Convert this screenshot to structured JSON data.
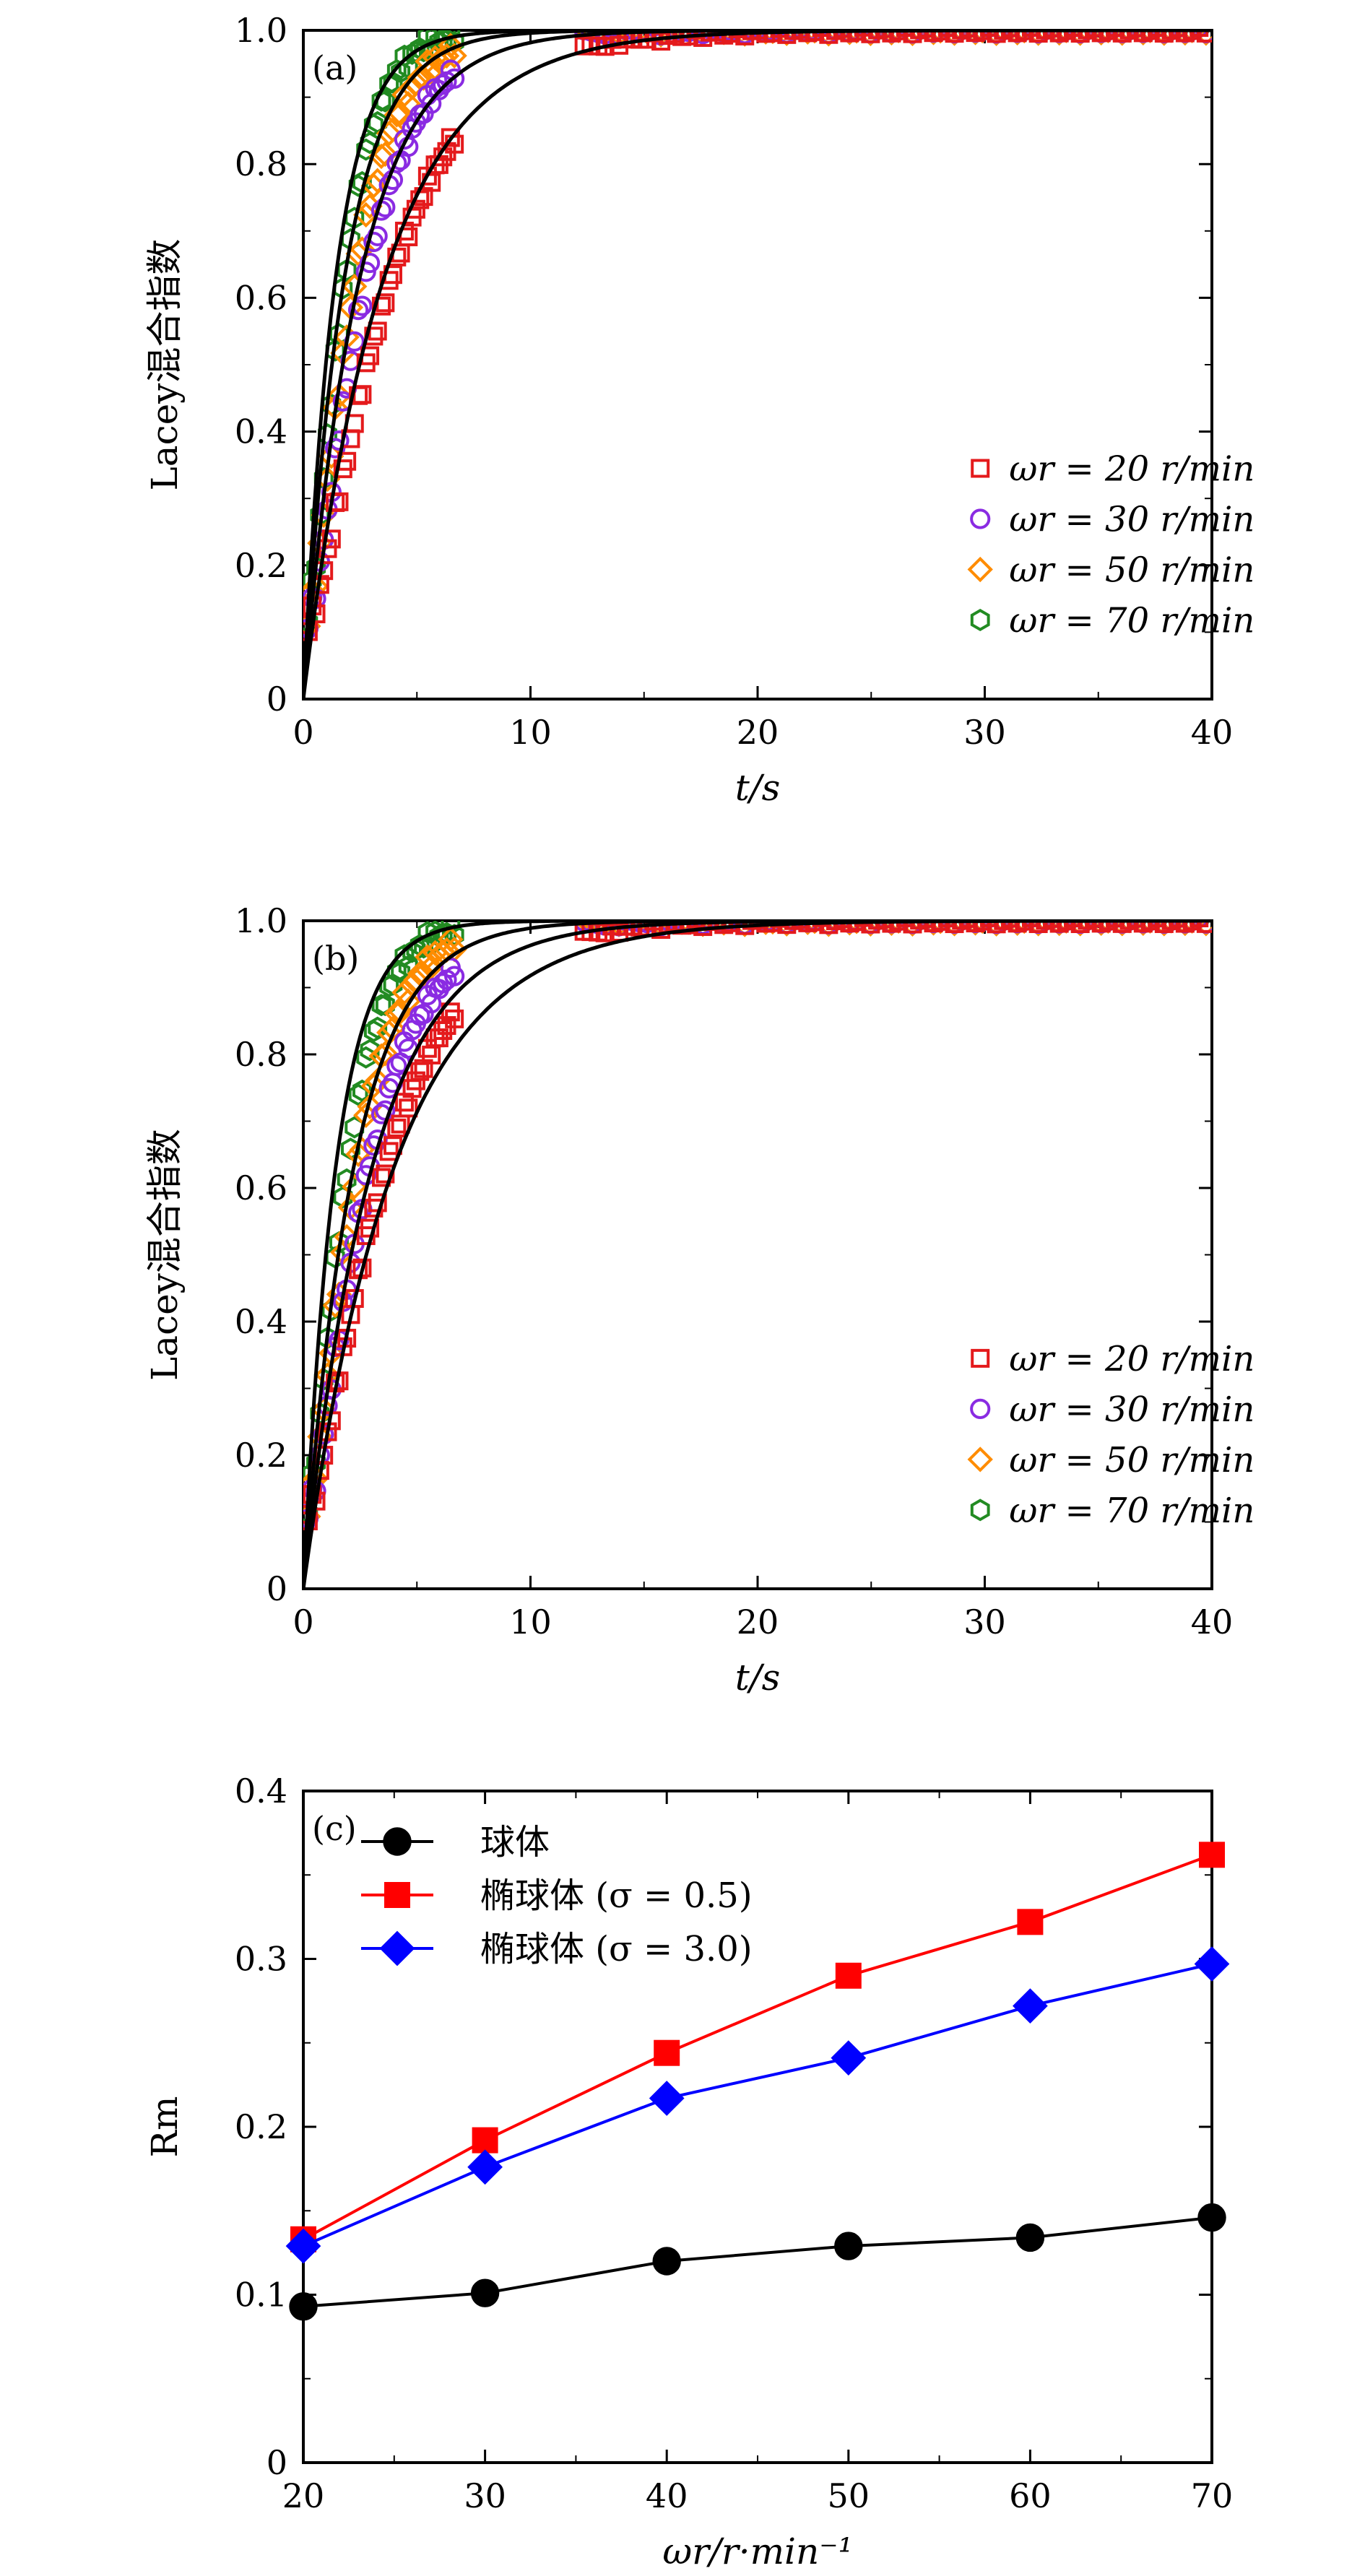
{
  "colors": {
    "w20": "#e41a1c",
    "w30": "#8a2be2",
    "w50": "#ff8c00",
    "w70": "#228b22",
    "sphere": "#000000",
    "ell05": "#ff0000",
    "ell30": "#0000ff",
    "fit": "#000000"
  },
  "chart_data": [
    {
      "type": "scatter",
      "panel": "(a)",
      "xlabel": "t/s",
      "ylabel": "Lacey混合指数",
      "xlim": [
        0,
        40
      ],
      "ylim": [
        0,
        1.0
      ],
      "xticks": [
        0,
        10,
        20,
        30,
        40
      ],
      "xtick_labels": [
        "0",
        "10",
        "20",
        "30",
        "40"
      ],
      "yticks": [
        0,
        0.2,
        0.4,
        0.6,
        0.8,
        1.0
      ],
      "ytick_labels": [
        "0",
        "0.2",
        "0.4",
        "0.6",
        "0.8",
        "1.0"
      ],
      "legend_position": "center-right",
      "series": [
        {
          "key": "w20",
          "name": "ωr = 20 r/min",
          "marker": "square",
          "color": "#e41a1c",
          "rate": 0.22
        },
        {
          "key": "w30",
          "name": "ωr = 30 r/min",
          "marker": "circle",
          "color": "#8a2be2",
          "rate": 0.34
        },
        {
          "key": "w50",
          "name": "ωr = 50 r/min",
          "marker": "diamond",
          "color": "#ff8c00",
          "rate": 0.44
        },
        {
          "key": "w70",
          "name": "ωr = 70 r/min",
          "marker": "hexagon",
          "color": "#228b22",
          "rate": 0.6
        }
      ],
      "fit_rates": [
        0.28,
        0.4,
        0.55,
        0.7
      ]
    },
    {
      "type": "scatter",
      "panel": "(b)",
      "xlabel": "t/s",
      "ylabel": "Lacey混合指数",
      "xlim": [
        0,
        40
      ],
      "ylim": [
        0,
        1.0
      ],
      "xticks": [
        0,
        10,
        20,
        30,
        40
      ],
      "xtick_labels": [
        "0",
        "10",
        "20",
        "30",
        "40"
      ],
      "yticks": [
        0,
        0.2,
        0.4,
        0.6,
        0.8,
        1.0
      ],
      "ytick_labels": [
        "0",
        "0.2",
        "0.4",
        "0.6",
        "0.8",
        "1.0"
      ],
      "legend_position": "center-right",
      "series": [
        {
          "key": "w20",
          "name": "ωr = 20 r/min",
          "marker": "square",
          "color": "#e41a1c",
          "rate": 0.24
        },
        {
          "key": "w30",
          "name": "ωr = 30 r/min",
          "marker": "circle",
          "color": "#8a2be2",
          "rate": 0.32
        },
        {
          "key": "w50",
          "name": "ωr = 50 r/min",
          "marker": "diamond",
          "color": "#ff8c00",
          "rate": 0.42
        },
        {
          "key": "w70",
          "name": "ωr = 70 r/min",
          "marker": "hexagon",
          "color": "#228b22",
          "rate": 0.55
        }
      ],
      "fit_rates": [
        0.25,
        0.33,
        0.45,
        0.7
      ]
    },
    {
      "type": "line",
      "panel": "(c)",
      "xlabel": "ωr/r·min⁻¹",
      "ylabel": "Rm",
      "xlim": [
        20,
        70
      ],
      "ylim": [
        0,
        0.4
      ],
      "xticks": [
        20,
        30,
        40,
        50,
        60,
        70
      ],
      "xtick_labels": [
        "20",
        "30",
        "40",
        "50",
        "60",
        "70"
      ],
      "yticks": [
        0,
        0.1,
        0.2,
        0.3,
        0.4
      ],
      "ytick_labels": [
        "0",
        "0.1",
        "0.2",
        "0.3",
        "0.4"
      ],
      "legend_position": "top-left",
      "x": [
        20,
        30,
        40,
        50,
        60,
        70
      ],
      "series": [
        {
          "key": "sphere",
          "name": "球体",
          "marker": "circle",
          "color": "#000000",
          "values": [
            0.093,
            0.101,
            0.12,
            0.129,
            0.134,
            0.146
          ]
        },
        {
          "key": "ell05",
          "name": "椭球体 (σ = 0.5)",
          "marker": "square",
          "color": "#ff0000",
          "values": [
            0.133,
            0.192,
            0.244,
            0.29,
            0.322,
            0.362
          ]
        },
        {
          "key": "ell30",
          "name": "椭球体 (σ = 3.0)",
          "marker": "diamond",
          "color": "#0000ff",
          "values": [
            0.129,
            0.176,
            0.217,
            0.241,
            0.272,
            0.297
          ]
        }
      ]
    }
  ]
}
